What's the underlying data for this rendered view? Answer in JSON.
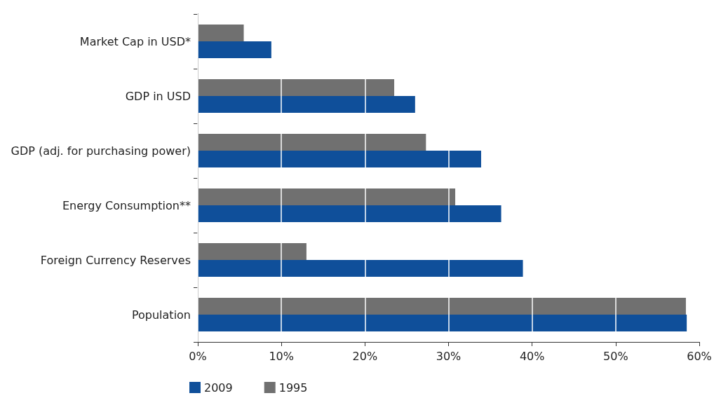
{
  "chart_data": {
    "type": "bar",
    "orientation": "horizontal",
    "categories": [
      "Market Cap in USD*",
      "GDP in USD",
      "GDP (adj. for purchasing power)",
      "Energy Consumption**",
      "Foreign Currency Reserves",
      "Population"
    ],
    "series": [
      {
        "name": "2009",
        "color": "#0f4f9a",
        "values": [
          8.8,
          26.0,
          33.9,
          36.3,
          38.9,
          58.5
        ]
      },
      {
        "name": "1995",
        "color": "#707070",
        "values": [
          5.5,
          23.5,
          27.3,
          30.8,
          13.0,
          58.4
        ]
      }
    ],
    "xlim": [
      0,
      60
    ],
    "xticks": [
      {
        "value": 0,
        "label": "0%"
      },
      {
        "value": 10,
        "label": "10%"
      },
      {
        "value": 20,
        "label": "20%"
      },
      {
        "value": 30,
        "label": "30%"
      },
      {
        "value": 40,
        "label": "40%"
      },
      {
        "value": 50,
        "label": "50%"
      },
      {
        "value": 60,
        "label": "60%"
      }
    ],
    "grid": "x",
    "legend": "bottom left"
  }
}
